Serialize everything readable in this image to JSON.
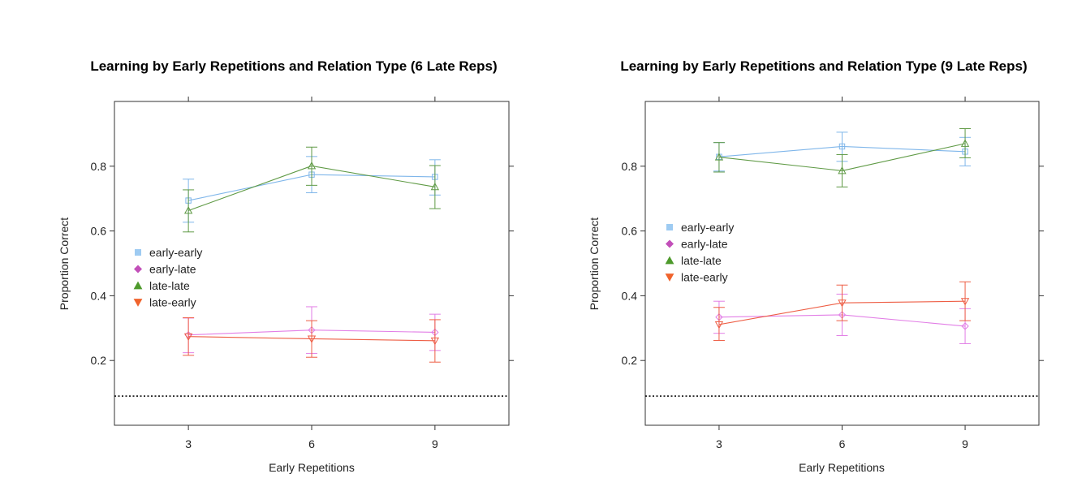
{
  "chart_data": [
    {
      "type": "line",
      "title": "Learning by Early Repetitions and Relation Type (6 Late Reps)",
      "xlabel": "Early Repetitions",
      "ylabel": "Proportion Correct",
      "x": [
        3,
        6,
        9
      ],
      "x_ticks": [
        "3",
        "6",
        "9"
      ],
      "y_ticks": [
        "0.2",
        "0.4",
        "0.6",
        "0.8"
      ],
      "xlim": [
        1.2,
        10.8
      ],
      "ylim": [
        0.0,
        1.0
      ],
      "reference_line_y": 0.09,
      "legend_position": "left-middle",
      "series": [
        {
          "name": "early-early",
          "values": [
            0.694,
            0.774,
            0.767
          ],
          "err_low": [
            0.627,
            0.718,
            0.711
          ],
          "err_high": [
            0.76,
            0.83,
            0.82
          ]
        },
        {
          "name": "early-late",
          "values": [
            0.279,
            0.294,
            0.287
          ],
          "err_low": [
            0.224,
            0.222,
            0.231
          ],
          "err_high": [
            0.331,
            0.366,
            0.343
          ]
        },
        {
          "name": "late-late",
          "values": [
            0.663,
            0.801,
            0.736
          ],
          "err_low": [
            0.597,
            0.741,
            0.669
          ],
          "err_high": [
            0.727,
            0.859,
            0.802
          ]
        },
        {
          "name": "late-early",
          "values": [
            0.274,
            0.267,
            0.261
          ],
          "err_low": [
            0.216,
            0.21,
            0.195
          ],
          "err_high": [
            0.332,
            0.323,
            0.326
          ]
        }
      ]
    },
    {
      "type": "line",
      "title": "Learning by Early Repetitions and Relation Type (9 Late Reps)",
      "xlabel": "Early Repetitions",
      "ylabel": "Proportion Correct",
      "x": [
        3,
        6,
        9
      ],
      "x_ticks": [
        "3",
        "6",
        "9"
      ],
      "y_ticks": [
        "0.2",
        "0.4",
        "0.6",
        "0.8"
      ],
      "xlim": [
        1.2,
        10.8
      ],
      "ylim": [
        0.0,
        1.0
      ],
      "reference_line_y": 0.09,
      "legend_position": "left-middle",
      "series": [
        {
          "name": "early-early",
          "values": [
            0.829,
            0.861,
            0.845
          ],
          "err_low": [
            0.785,
            0.815,
            0.801
          ],
          "err_high": [
            0.873,
            0.905,
            0.889
          ]
        },
        {
          "name": "early-late",
          "values": [
            0.334,
            0.341,
            0.306
          ],
          "err_low": [
            0.284,
            0.277,
            0.252
          ],
          "err_high": [
            0.383,
            0.405,
            0.36
          ]
        },
        {
          "name": "late-late",
          "values": [
            0.828,
            0.786,
            0.87
          ],
          "err_low": [
            0.782,
            0.736,
            0.826
          ],
          "err_high": [
            0.873,
            0.836,
            0.916
          ]
        },
        {
          "name": "late-early",
          "values": [
            0.311,
            0.378,
            0.383
          ],
          "err_low": [
            0.262,
            0.323,
            0.323
          ],
          "err_high": [
            0.364,
            0.433,
            0.443
          ]
        }
      ]
    }
  ],
  "styles": {
    "early-early": {
      "color": "#7fb6ea",
      "marker": "square",
      "legend_color": "#9ecbf2"
    },
    "early-late": {
      "color": "#e27ee6",
      "marker": "diamond",
      "legend_color": "#c24fb9"
    },
    "late-late": {
      "color": "#5f9a45",
      "marker": "triangle-up",
      "legend_color": "#4e9a2c"
    },
    "late-early": {
      "color": "#ee5e45",
      "marker": "triangle-down",
      "legend_color": "#f0632c"
    }
  }
}
